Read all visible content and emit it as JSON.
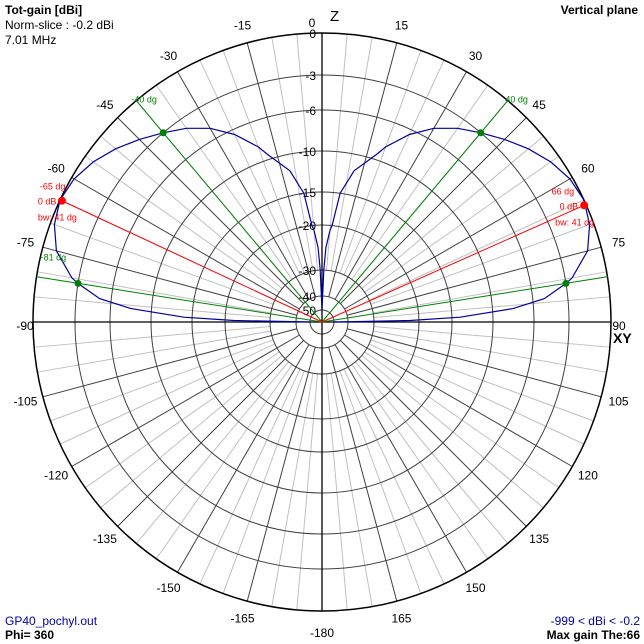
{
  "header": {
    "title": "Tot-gain [dBi]",
    "norm_slice": "Norm-slice : -0.2 dBi",
    "frequency": "7.01 MHz",
    "plane": "Vertical plane"
  },
  "footer": {
    "file": "GP40_pochyl.out",
    "phi": "Phi= 360",
    "range": "-999 < dBi < -0.2",
    "max_gain": "Max gain The:66"
  },
  "axis_labels": {
    "top": "Z",
    "right": "XY"
  },
  "colors": {
    "pattern": "#0000a0",
    "max_marker": "#ff0000",
    "half_power": "#008000",
    "grid_major": "#404040",
    "grid_minor": "#c0c0c0"
  },
  "chart_data": {
    "type": "polar-line",
    "title": "Tot-gain [dBi]",
    "angle_unit": "degrees from zenith",
    "angle_ticks": [
      "0",
      "15",
      "30",
      "45",
      "60",
      "75",
      "90",
      "105",
      "120",
      "135",
      "150",
      "165",
      "-180",
      "-165",
      "-150",
      "-135",
      "-120",
      "-105",
      "-90",
      "-75",
      "-60",
      "-45",
      "-30",
      "-15"
    ],
    "angle_tick_values": [
      0,
      15,
      30,
      45,
      60,
      75,
      90,
      105,
      120,
      135,
      150,
      165,
      180,
      -165,
      -150,
      -135,
      -120,
      -105,
      -90,
      -75,
      -60,
      -45,
      -30,
      -15
    ],
    "radial_ticks": [
      "0",
      "-3",
      "-6",
      "-10",
      "-15",
      "-20",
      "-30",
      "-40",
      "-50"
    ],
    "radial_tick_values": [
      0,
      -3,
      -6,
      -10,
      -15,
      -20,
      -30,
      -40,
      -50
    ],
    "scale": "log (ARRL-style)",
    "grid": true,
    "series": [
      {
        "theta": [
          0,
          2,
          3,
          5,
          6,
          8,
          12,
          18,
          20,
          25,
          30,
          35,
          40,
          45,
          50,
          55,
          60,
          65,
          70,
          75,
          80,
          81,
          84,
          86,
          88,
          89,
          90
        ],
        "gain_db": [
          -50,
          -30,
          -25,
          -21,
          -20,
          -15,
          -12,
          -9.5,
          -8.5,
          -6.5,
          -5,
          -3.9,
          -3,
          -2.2,
          -1.4,
          -0.7,
          -0.2,
          0,
          -0.3,
          -1,
          -2.5,
          -3,
          -5,
          -8,
          -14,
          -22,
          -50
        ],
        "symmetric": true
      }
    ],
    "markers": {
      "max": [
        {
          "angle": -65,
          "label": "-65 dg",
          "db_label": "0 dB",
          "bw_label": "bw: 41 dg"
        },
        {
          "angle": 66,
          "label": "66 dg",
          "db_label": "0 dB",
          "bw_label": "bw: 41 dg"
        }
      ],
      "half_power": [
        {
          "angle": -40,
          "label": "-40 dg"
        },
        {
          "angle": -81,
          "label": "-81 dg"
        },
        {
          "angle": 40,
          "label": "40 dg"
        },
        {
          "angle": 81,
          "label": ""
        }
      ]
    }
  }
}
